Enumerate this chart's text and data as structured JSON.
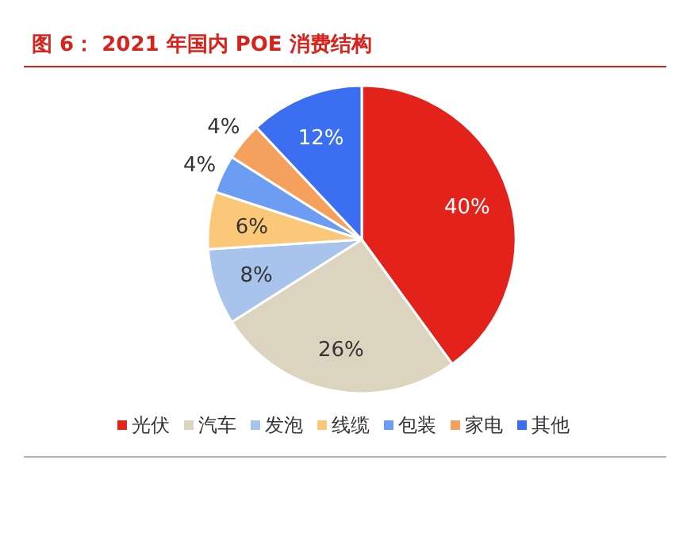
{
  "chart_data": {
    "type": "pie",
    "title": "图 6： 2021 年国内 POE 消费结构",
    "categories": [
      "光伏",
      "汽车",
      "发泡",
      "线缆",
      "包装",
      "家电",
      "其他"
    ],
    "values": [
      40,
      26,
      8,
      6,
      4,
      4,
      12
    ],
    "colors": [
      "#e3231b",
      "#ddd4c0",
      "#a8c3ec",
      "#fac878",
      "#6d9cf3",
      "#f5a05c",
      "#3b6ef0"
    ],
    "value_labels": [
      "40%",
      "26%",
      "8%",
      "6%",
      "4%",
      "4%",
      "12%"
    ],
    "legend": "bottom"
  }
}
